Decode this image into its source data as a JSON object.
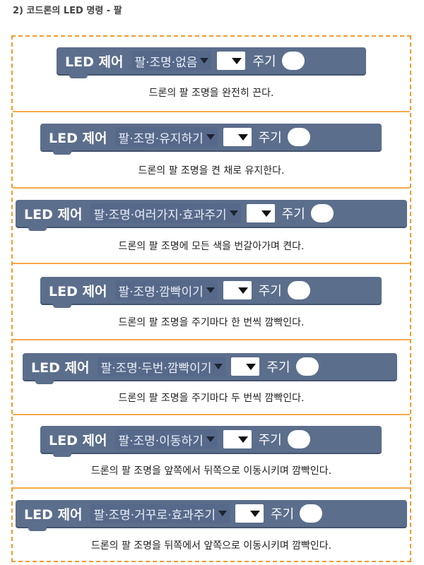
{
  "page": {
    "title": "2) 코드론의 LED 명령 - 팔"
  },
  "common": {
    "block_label": "LED 제어",
    "period_label": "주기"
  },
  "commands": [
    {
      "option": "팔·조명·없음",
      "description": "드론의 팔 조명을 완전히 끈다."
    },
    {
      "option": "팔·조명·유지하기",
      "description": "드론의 팔 조명을 켠 채로 유지한다."
    },
    {
      "option": "팔·조명·여러가지·효과주기",
      "description": "드론의 팔 조명에 모든 색을 번갈아가며 켠다."
    },
    {
      "option": "팔·조명·깜빡이기",
      "description": "드론의  팔 조명을 주기마다 한 번씩 깜빡인다."
    },
    {
      "option": "팔·조명·두번·깜빡이기",
      "description": "드론의 팔 조명을 주기마다 두 번씩 깜빡인다."
    },
    {
      "option": "팔·조명·이동하기",
      "description": "드론의 팔 조명을 앞쪽에서 뒤쪽으로 이동시키며 깜빡인다."
    },
    {
      "option": "팔·조명·거꾸로·효과주기",
      "description": "드론의 팔 조명을 뒤쪽에서 앞쪽으로 이동시키며 깜빡인다."
    }
  ],
  "colors": {
    "frame": "#f39a2b",
    "block": "#5b6e8c",
    "dropdown": "#56698a"
  }
}
